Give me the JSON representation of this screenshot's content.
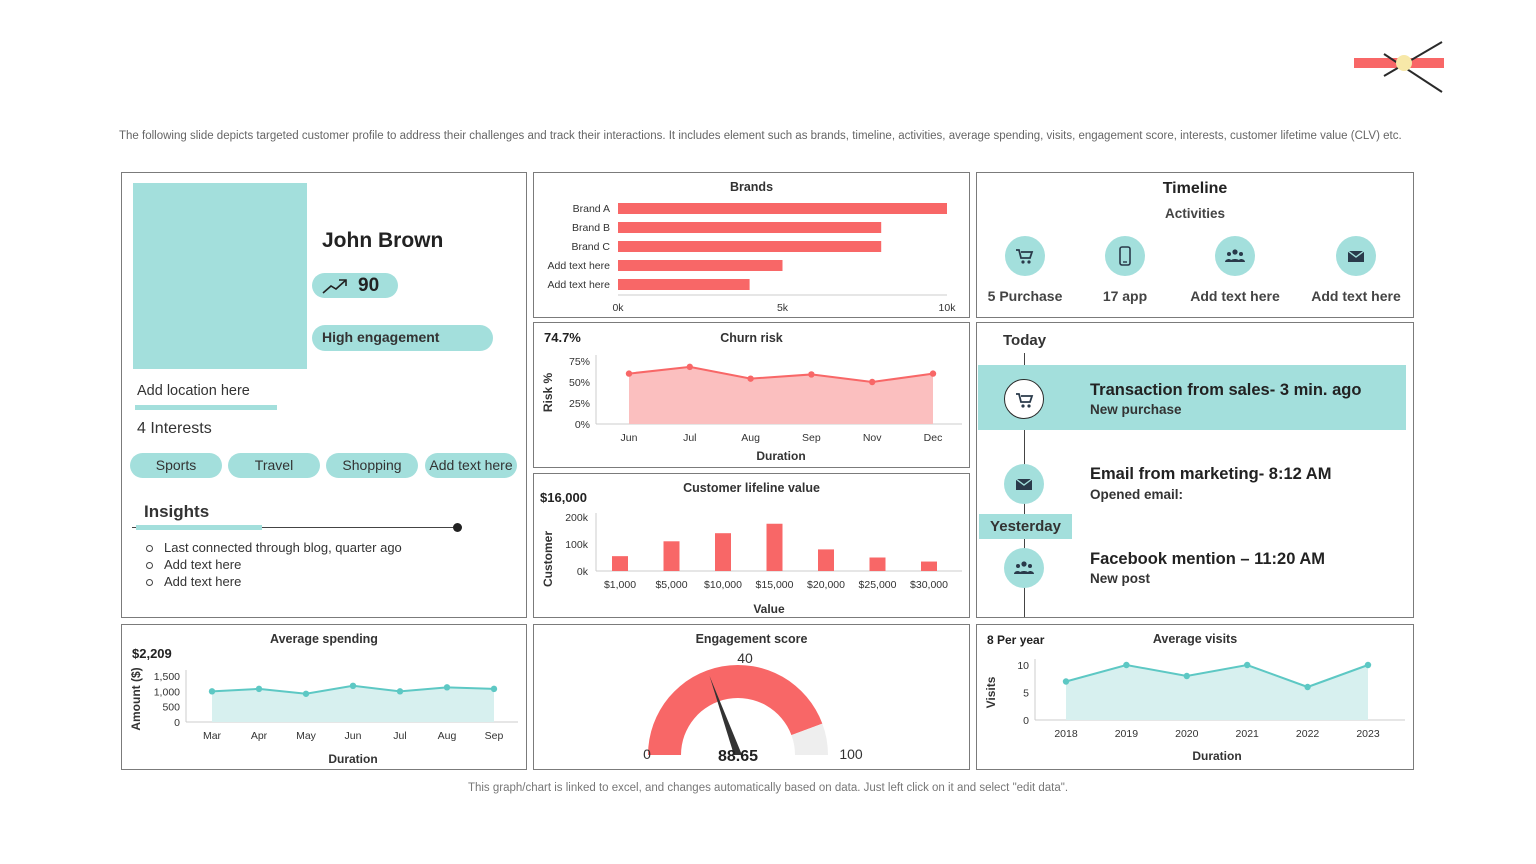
{
  "description": "The following slide depicts targeted customer profile to address their challenges and track their interactions. It includes element such as brands, timeline, activities, average spending, visits, engagement score, interests, customer lifetime value (CLV) etc.",
  "footer": "This graph/chart is linked to excel, and changes automatically based on data. Just left click on it and select \"edit data\".",
  "colors": {
    "accent": "#a3dfdc",
    "red": "#f86767",
    "red_light": "#fbbfbf",
    "teal": "#5dc8c4",
    "teal_light": "#d7f0ef"
  },
  "profile": {
    "name": "John Brown",
    "score": "90",
    "engagement": "High engagement",
    "location": "Add location here",
    "interests_count": "4 Interests",
    "interests": [
      "Sports",
      "Travel",
      "Shopping",
      "Add text here"
    ],
    "insights_title": "Insights",
    "insights": [
      "Last connected through blog, quarter ago",
      "Add text here",
      "Add text here"
    ]
  },
  "timeline": {
    "title": "Timeline",
    "subtitle": "Activities",
    "activities": [
      {
        "label": "5 Purchase",
        "icon": "shopping-cart-icon"
      },
      {
        "label": "17 app",
        "icon": "mobile-phone-icon"
      },
      {
        "label": "Add text here",
        "icon": "users-icon"
      },
      {
        "label": "Add text here",
        "icon": "email-icon"
      }
    ]
  },
  "feed": {
    "today": "Today",
    "yesterday": "Yesterday",
    "items": [
      {
        "title": "Transaction from sales- 3 min. ago",
        "sub": "New purchase",
        "icon": "shopping-cart-icon"
      },
      {
        "title": "Email from marketing- 8:12 AM",
        "sub": "Opened email:",
        "icon": "email-icon"
      },
      {
        "title": "Facebook mention – 11:20 AM",
        "sub": "New post",
        "icon": "users-icon"
      }
    ]
  },
  "chart_data": [
    {
      "id": "brands",
      "type": "bar",
      "orientation": "horizontal",
      "title": "Brands",
      "categories": [
        "Brand A",
        "Brand B",
        "Brand C",
        "Add text here",
        "Add text here"
      ],
      "values": [
        10000,
        8000,
        8000,
        5000,
        4000
      ],
      "xlim": [
        0,
        10000
      ],
      "xticks": [
        "0k",
        "5k",
        "10k"
      ],
      "grid": false
    },
    {
      "id": "churn",
      "type": "area",
      "title": "Churn risk",
      "headline": "74.7%",
      "xlabel": "Duration",
      "ylabel": "Risk %",
      "categories": [
        "Jun",
        "Jul",
        "Aug",
        "Sep",
        "Nov",
        "Dec"
      ],
      "values": [
        0.6,
        0.68,
        0.54,
        0.59,
        0.5,
        0.6
      ],
      "ylim": [
        0,
        0.75
      ],
      "yticks": [
        "0%",
        "25%",
        "50%",
        "75%"
      ]
    },
    {
      "id": "clv",
      "type": "bar",
      "title": "Customer lifeline value",
      "headline": "$16,000",
      "xlabel": "Value",
      "ylabel": "Customer",
      "categories": [
        "$1,000",
        "$5,000",
        "$10,000",
        "$15,000",
        "$20,000",
        "$25,000",
        "$30,000"
      ],
      "values": [
        55000,
        110000,
        140000,
        175000,
        80000,
        50000,
        35000
      ],
      "ylim": [
        0,
        200000
      ],
      "yticks": [
        "0k",
        "100k",
        "200k"
      ]
    },
    {
      "id": "spending",
      "type": "area",
      "title": "Average spending",
      "headline": "$2,209",
      "xlabel": "Duration",
      "ylabel": "Amount ($)",
      "categories": [
        "Mar",
        "Apr",
        "May",
        "Jun",
        "Jul",
        "Aug",
        "Sep"
      ],
      "values": [
        1000,
        1080,
        920,
        1180,
        1000,
        1130,
        1080
      ],
      "ylim": [
        0,
        1500
      ],
      "yticks": [
        "0",
        "500",
        "1,000",
        "1,500"
      ]
    },
    {
      "id": "engagement",
      "type": "gauge",
      "title": "Engagement score",
      "value": 88.65,
      "value_label": "88.65",
      "min_label": "0",
      "max_label": "100",
      "mid_label": "40",
      "range": [
        0,
        100
      ]
    },
    {
      "id": "visits",
      "type": "area",
      "title": "Average visits",
      "headline": "8 Per year",
      "xlabel": "Duration",
      "ylabel": "Visits",
      "categories": [
        "2018",
        "2019",
        "2020",
        "2021",
        "2022",
        "2023"
      ],
      "values": [
        7,
        10,
        8,
        10,
        6,
        10
      ],
      "ylim": [
        0,
        10
      ],
      "yticks": [
        "0",
        "5",
        "10"
      ]
    }
  ]
}
